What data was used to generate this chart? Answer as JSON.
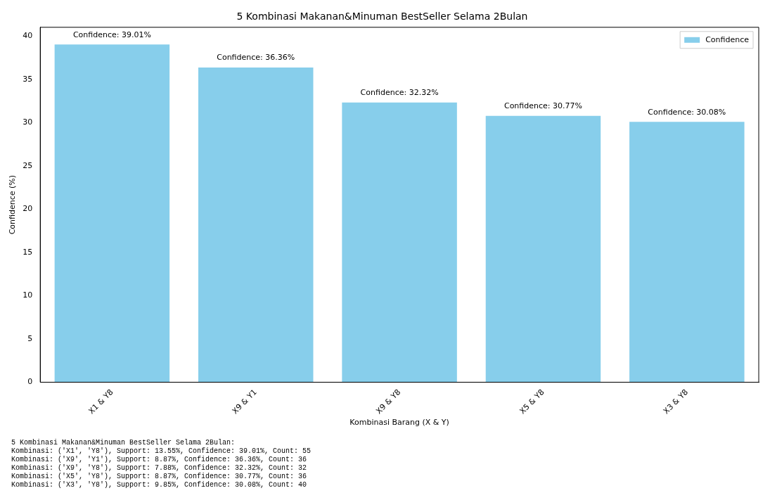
{
  "chart_data": {
    "type": "bar",
    "title": "5 Kombinasi Makanan&Minuman BestSeller Selama 2Bulan",
    "xlabel": "Kombinasi Barang (X & Y)",
    "ylabel": "Confidence (%)",
    "categories": [
      "X1 & Y8",
      "X9 & Y1",
      "X9 & Y8",
      "X5 & Y8",
      "X3 & Y8"
    ],
    "series": [
      {
        "name": "Confidence",
        "color": "#87ceeb",
        "values": [
          39.01,
          36.36,
          32.32,
          30.77,
          30.08
        ],
        "value_labels": [
          "Confidence: 39.01%",
          "Confidence: 36.36%",
          "Confidence: 32.32%",
          "Confidence: 30.77%",
          "Confidence: 30.08%"
        ]
      }
    ],
    "ylim": [
      0,
      41
    ],
    "yticks": [
      0,
      5,
      10,
      15,
      20,
      25,
      30,
      35,
      40
    ],
    "grid": false,
    "legend": "top right",
    "annotations": [
      "5 Kombinasi Makanan&Minuman BestSeller Selama 2Bulan:",
      "Kombinasi: ('X1', 'Y8'), Support: 13.55%, Confidence: 39.01%, Count: 55",
      "Kombinasi: ('X9', 'Y1'), Support: 8.87%, Confidence: 36.36%, Count: 36",
      "Kombinasi: ('X9', 'Y8'), Support: 7.88%, Confidence: 32.32%, Count: 32",
      "Kombinasi: ('X5', 'Y8'), Support: 8.87%, Confidence: 30.77%, Count: 36",
      "Kombinasi: ('X3', 'Y8'), Support: 9.85%, Confidence: 30.08%, Count: 40"
    ]
  }
}
